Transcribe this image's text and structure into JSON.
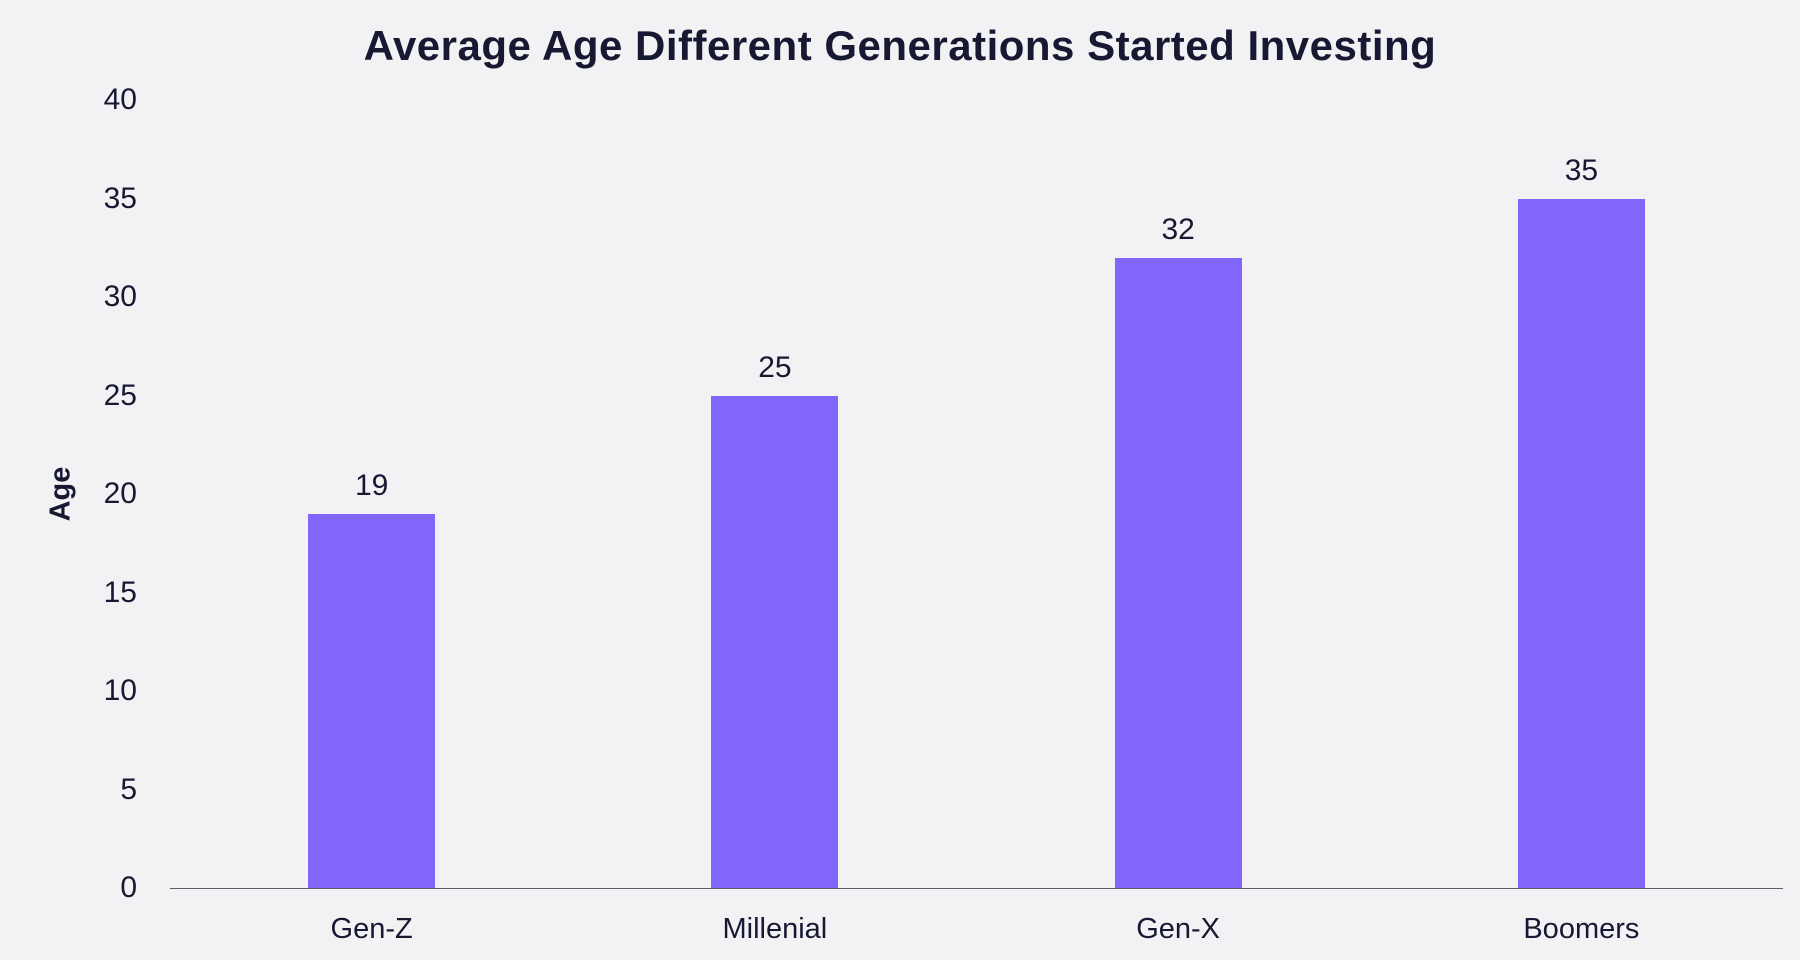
{
  "chart_data": {
    "type": "bar",
    "title": "Average Age Different Generations Started Investing",
    "categories": [
      "Gen-Z",
      "Millenial",
      "Gen-X",
      "Boomers"
    ],
    "values": [
      19,
      25,
      32,
      35
    ],
    "bar_labels": [
      "19",
      "25",
      "32",
      "35"
    ],
    "xlabel": "",
    "ylabel": "Age",
    "ylim": [
      0,
      40
    ],
    "yticks": [
      0,
      5,
      10,
      15,
      20,
      25,
      30,
      35,
      40
    ],
    "grid": false,
    "legend_position": "none",
    "colors": {
      "bar": "#8266FB",
      "background": "#F2F2F4",
      "text": "#171831",
      "axis_line": "#5F6066"
    }
  }
}
